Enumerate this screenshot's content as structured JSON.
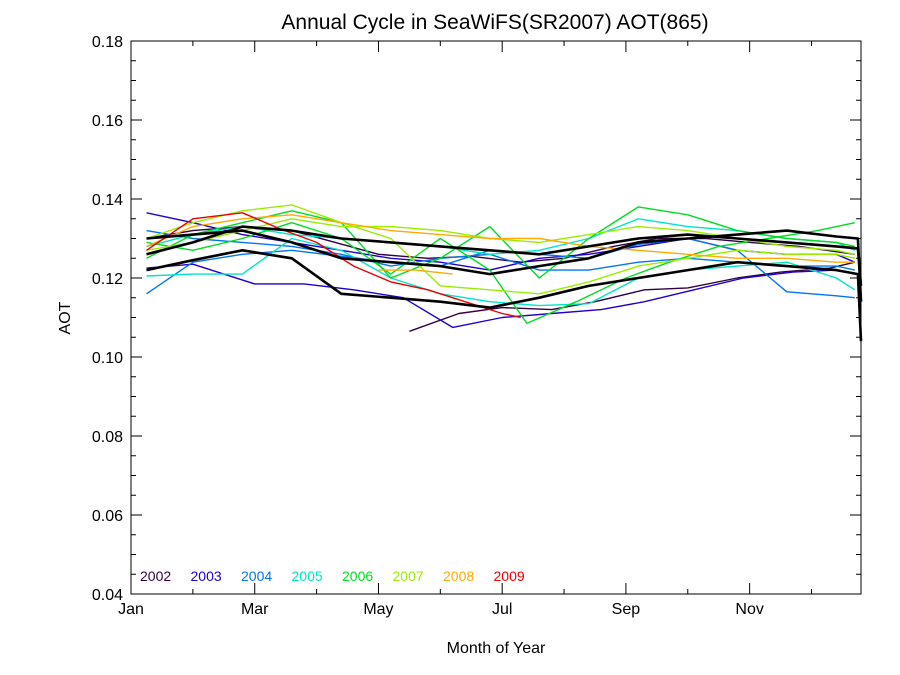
{
  "chart_data": {
    "type": "line",
    "title": "Annual Cycle in SeaWiFS(SR2007) AOT(865)",
    "xlabel": "Month of Year",
    "ylabel": "AOT",
    "xlim": [
      1,
      12.8
    ],
    "ylim": [
      0.04,
      0.18
    ],
    "x_ticks": [
      {
        "x": 1,
        "label": "Jan"
      },
      {
        "x": 3,
        "label": "Mar"
      },
      {
        "x": 5,
        "label": "May"
      },
      {
        "x": 7,
        "label": "Jul"
      },
      {
        "x": 9,
        "label": "Sep"
      },
      {
        "x": 11,
        "label": "Nov"
      }
    ],
    "x_minor_ticks": [
      2,
      4,
      6,
      8,
      10,
      12
    ],
    "y_ticks": [
      {
        "y": 0.04,
        "label": "0.04"
      },
      {
        "y": 0.06,
        "label": "0.06"
      },
      {
        "y": 0.08,
        "label": "0.08"
      },
      {
        "y": 0.1,
        "label": "0.10"
      },
      {
        "y": 0.12,
        "label": "0.12"
      },
      {
        "y": 0.14,
        "label": "0.14"
      },
      {
        "y": 0.16,
        "label": "0.16"
      },
      {
        "y": 0.18,
        "label": "0.18"
      }
    ],
    "y_minor_step": 0.005,
    "grid": false,
    "legend_position": "bottom-left",
    "series": [
      {
        "name": "2002",
        "color": "#330044",
        "x": [
          5.5,
          6.3,
          7.0,
          7.8,
          8.5,
          9.3,
          10.0,
          10.8,
          11.5,
          12.3,
          12.7
        ],
        "y": [
          0.1065,
          0.111,
          0.1125,
          0.112,
          0.114,
          0.117,
          0.1175,
          0.12,
          0.1215,
          0.1225,
          0.124
        ]
      },
      {
        "name": "2002",
        "color": "#330044",
        "x": [
          1.25,
          2.0,
          2.8,
          3.6,
          4.3,
          5.0,
          5.8,
          6.5,
          7.3,
          8.0,
          8.8,
          9.5,
          10.3,
          11.0,
          11.8,
          12.7
        ],
        "y": [
          0.13,
          0.132,
          0.133,
          0.132,
          0.129,
          0.126,
          0.125,
          0.1255,
          0.124,
          0.125,
          0.128,
          0.13,
          0.13,
          0.129,
          0.128,
          0.126
        ]
      },
      {
        "name": "2003",
        "color": "#2200cc",
        "x": [
          1.25,
          2.0,
          3.0,
          3.8,
          4.6,
          5.4,
          6.2,
          7.0,
          7.8,
          8.6,
          9.3,
          10.1,
          10.9,
          11.7,
          12.4,
          12.7
        ],
        "y": [
          0.1225,
          0.1235,
          0.1185,
          0.1185,
          0.117,
          0.115,
          0.1075,
          0.11,
          0.111,
          0.112,
          0.114,
          0.117,
          0.12,
          0.1215,
          0.122,
          0.121
        ]
      },
      {
        "name": "2003",
        "color": "#2200cc",
        "x": [
          1.25,
          2.0,
          2.8,
          3.6,
          4.4,
          5.2,
          6.0,
          6.8,
          7.6,
          8.4,
          9.2,
          10.0,
          10.8,
          11.6,
          12.4,
          12.7
        ],
        "y": [
          0.1365,
          0.134,
          0.131,
          0.129,
          0.127,
          0.125,
          0.124,
          0.122,
          0.125,
          0.126,
          0.128,
          0.13,
          0.127,
          0.126,
          0.126,
          0.124
        ]
      },
      {
        "name": "2004",
        "color": "#0077ee",
        "x": [
          1.25,
          2.0,
          2.8,
          3.6,
          4.4,
          5.2,
          6.0,
          6.8,
          7.6,
          8.4,
          9.2,
          10.0,
          10.8,
          11.6,
          12.4,
          12.7
        ],
        "y": [
          0.116,
          0.124,
          0.126,
          0.127,
          0.1255,
          0.124,
          0.123,
          0.127,
          0.126,
          0.125,
          0.1285,
          0.13,
          0.127,
          0.1165,
          0.1155,
          0.115
        ]
      },
      {
        "name": "2004",
        "color": "#0077ee",
        "x": [
          1.25,
          2.0,
          2.8,
          3.6,
          4.4,
          5.2,
          6.0,
          6.8,
          7.6,
          8.4,
          9.2,
          10.0,
          10.8,
          11.6,
          12.4,
          12.7
        ],
        "y": [
          0.132,
          0.13,
          0.129,
          0.128,
          0.126,
          0.123,
          0.125,
          0.126,
          0.122,
          0.122,
          0.124,
          0.125,
          0.124,
          0.123,
          0.123,
          0.122
        ]
      },
      {
        "name": "2005",
        "color": "#00e5c8",
        "x": [
          1.25,
          2.0,
          2.8,
          3.6,
          4.4,
          5.2,
          6.0,
          6.8,
          7.6,
          8.4,
          9.2,
          10.0,
          10.8,
          11.6,
          12.4,
          12.7
        ],
        "y": [
          0.1205,
          0.121,
          0.121,
          0.13,
          0.127,
          0.12,
          0.116,
          0.114,
          0.113,
          0.1135,
          0.12,
          0.122,
          0.123,
          0.124,
          0.12,
          0.117
        ]
      },
      {
        "name": "2005",
        "color": "#00e5c8",
        "x": [
          1.25,
          2.0,
          2.8,
          3.6,
          4.4,
          5.2,
          6.0,
          6.8,
          7.6,
          8.4,
          9.2,
          10.0,
          10.8,
          11.6,
          12.4,
          12.7
        ],
        "y": [
          0.128,
          0.131,
          0.133,
          0.131,
          0.13,
          0.129,
          0.128,
          0.126,
          0.127,
          0.13,
          0.135,
          0.133,
          0.132,
          0.13,
          0.129,
          0.127
        ]
      },
      {
        "name": "2006",
        "color": "#00dd22",
        "x": [
          1.25,
          2.0,
          2.8,
          3.6,
          4.4,
          5.2,
          6.0,
          6.8,
          7.4,
          8.2,
          9.0,
          9.7,
          10.5,
          11.3,
          12.1,
          12.7
        ],
        "y": [
          0.129,
          0.127,
          0.13,
          0.134,
          0.13,
          0.121,
          0.13,
          0.122,
          0.1085,
          0.114,
          0.12,
          0.124,
          0.128,
          0.13,
          0.132,
          0.134
        ]
      },
      {
        "name": "2006",
        "color": "#00dd22",
        "x": [
          1.25,
          2.0,
          2.8,
          3.6,
          4.4,
          5.2,
          6.0,
          6.8,
          7.6,
          8.4,
          9.2,
          10.0,
          10.8,
          11.6,
          12.4,
          12.7
        ],
        "y": [
          0.125,
          0.131,
          0.134,
          0.137,
          0.134,
          0.12,
          0.125,
          0.133,
          0.12,
          0.13,
          0.138,
          0.136,
          0.132,
          0.13,
          0.129,
          0.128
        ]
      },
      {
        "name": "2007",
        "color": "#99ee00",
        "x": [
          1.25,
          2.0,
          2.8,
          3.6,
          4.4,
          5.2,
          6.0,
          6.8,
          7.6,
          8.4,
          9.2,
          10.0,
          10.8,
          11.6,
          12.4,
          12.7
        ],
        "y": [
          0.13,
          0.134,
          0.137,
          0.1385,
          0.134,
          0.13,
          0.118,
          0.117,
          0.116,
          0.119,
          0.123,
          0.125,
          0.127,
          0.126,
          0.126,
          0.125
        ]
      },
      {
        "name": "2007",
        "color": "#99ee00",
        "x": [
          1.25,
          2.0,
          2.8,
          3.6,
          4.4,
          5.2,
          6.0,
          6.8,
          7.6,
          8.4,
          9.2,
          10.0,
          10.8,
          11.6,
          12.4,
          12.7
        ],
        "y": [
          0.127,
          0.129,
          0.132,
          0.135,
          0.133,
          0.133,
          0.132,
          0.13,
          0.129,
          0.131,
          0.133,
          0.132,
          0.13,
          0.128,
          0.127,
          0.126
        ]
      },
      {
        "name": "2008",
        "color": "#ffaa00",
        "x": [
          1.25,
          2.0,
          2.8,
          3.6,
          4.4,
          5.2,
          6.0,
          6.8,
          7.6,
          8.4,
          9.2,
          10.0,
          10.8,
          11.6,
          12.4,
          12.7
        ],
        "y": [
          0.128,
          0.133,
          0.135,
          0.136,
          0.134,
          0.132,
          0.131,
          0.13,
          0.13,
          0.128,
          0.127,
          0.126,
          0.125,
          0.125,
          0.124,
          0.124
        ]
      },
      {
        "name": "2008",
        "color": "#ffaa00",
        "x": [
          5.0,
          5.6,
          6.2
        ],
        "y": [
          0.122,
          0.122,
          0.121
        ]
      },
      {
        "name": "2009",
        "color": "#ee0000",
        "x": [
          1.25,
          2.0,
          2.8,
          3.4,
          4.0,
          4.6,
          5.2,
          5.8,
          6.4,
          7.0,
          7.3
        ],
        "y": [
          0.127,
          0.135,
          0.1365,
          0.1325,
          0.129,
          0.123,
          0.119,
          0.117,
          0.114,
          0.111,
          0.11
        ]
      },
      {
        "name": "",
        "color": "#000000",
        "thick": true,
        "x": [
          1.25,
          2.0,
          2.8,
          3.6,
          4.4,
          5.2,
          6.0,
          6.8,
          7.6,
          8.4,
          9.2,
          10.0,
          10.8,
          11.6,
          12.4,
          12.75,
          12.8
        ],
        "y": [
          0.122,
          0.1245,
          0.127,
          0.125,
          0.116,
          0.115,
          0.114,
          0.1125,
          0.115,
          0.118,
          0.12,
          0.122,
          0.124,
          0.123,
          0.122,
          0.121,
          0.104
        ]
      },
      {
        "name": "",
        "color": "#000000",
        "thick": true,
        "x": [
          1.25,
          2.0,
          2.8,
          3.6,
          4.4,
          5.2,
          6.0,
          6.8,
          7.6,
          8.4,
          9.2,
          10.0,
          10.8,
          11.6,
          12.4,
          12.75,
          12.8
        ],
        "y": [
          0.13,
          0.131,
          0.132,
          0.129,
          0.125,
          0.124,
          0.123,
          0.121,
          0.123,
          0.125,
          0.129,
          0.13,
          0.131,
          0.132,
          0.1305,
          0.13,
          0.114
        ]
      },
      {
        "name": "",
        "color": "#000000",
        "thick": true,
        "x": [
          1.25,
          2.0,
          2.8,
          3.6,
          4.4,
          5.2,
          6.0,
          6.8,
          7.6,
          8.4,
          9.2,
          10.0,
          10.8,
          11.6,
          12.4,
          12.75,
          12.8
        ],
        "y": [
          0.126,
          0.129,
          0.133,
          0.132,
          0.13,
          0.129,
          0.128,
          0.127,
          0.126,
          0.128,
          0.13,
          0.131,
          0.13,
          0.129,
          0.128,
          0.1275,
          0.118
        ]
      }
    ],
    "legend": [
      {
        "label": "2002",
        "color": "#330044"
      },
      {
        "label": "2003",
        "color": "#2200cc"
      },
      {
        "label": "2004",
        "color": "#0077ee"
      },
      {
        "label": "2005",
        "color": "#00e5c8"
      },
      {
        "label": "2006",
        "color": "#00dd22"
      },
      {
        "label": "2007",
        "color": "#99ee00"
      },
      {
        "label": "2008",
        "color": "#ffaa00"
      },
      {
        "label": "2009",
        "color": "#ee0000"
      }
    ]
  }
}
